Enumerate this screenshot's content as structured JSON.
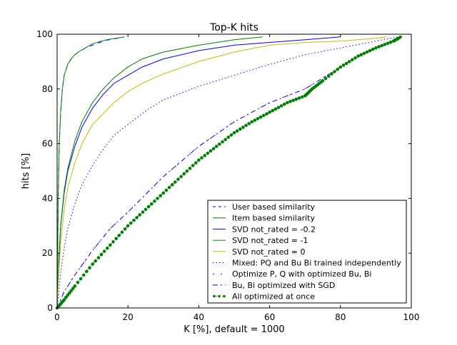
{
  "chart_data": {
    "type": "line",
    "title": "Top-K hits",
    "xlabel": "K [%], default = 1000",
    "ylabel": "hits [%]",
    "xlim": [
      0,
      100
    ],
    "ylim": [
      0,
      100
    ],
    "xticks": [
      "0",
      "20",
      "40",
      "60",
      "80",
      "100"
    ],
    "yticks": [
      "0",
      "20",
      "40",
      "60",
      "80",
      "100"
    ],
    "grid": false,
    "legend_position": "lower-right",
    "series": [
      {
        "name": "User based similarity",
        "color": "#0000ff",
        "style": "dashed",
        "x": [
          0,
          0.3,
          0.6,
          1,
          1.5,
          2,
          3,
          4,
          5,
          6,
          8,
          10,
          12,
          14,
          17,
          19
        ],
        "y": [
          0,
          40,
          60,
          72,
          80,
          85,
          89,
          91,
          92.5,
          93.5,
          95,
          96,
          97,
          97.8,
          98.5,
          99
        ]
      },
      {
        "name": "Item based similarity",
        "color": "#008000",
        "style": "solid",
        "x": [
          0,
          0.3,
          0.6,
          1,
          1.5,
          2,
          3,
          4,
          5,
          6,
          8,
          10,
          12,
          14,
          17,
          19
        ],
        "y": [
          0,
          40,
          60,
          72,
          80,
          85,
          89,
          91,
          92.5,
          93.5,
          95,
          96.5,
          97.3,
          98,
          98.6,
          99
        ]
      },
      {
        "name": "SVD not_rated = -0.2",
        "color": "#0000ff",
        "style": "solid",
        "x": [
          0,
          0.5,
          1,
          2,
          3,
          5,
          7,
          10,
          13,
          16,
          20,
          24,
          30,
          40,
          50,
          60,
          70,
          80
        ],
        "y": [
          0,
          18,
          30,
          42,
          50,
          59,
          66,
          73,
          78,
          82,
          85,
          88,
          91,
          94,
          96,
          97,
          98,
          99
        ]
      },
      {
        "name": "SVD not_rated = -1",
        "color": "#008000",
        "style": "solid",
        "x": [
          0,
          0.5,
          1,
          2,
          3,
          5,
          7,
          10,
          13,
          16,
          20,
          24,
          30,
          40,
          50,
          58
        ],
        "y": [
          0,
          18,
          30,
          43,
          51,
          61,
          68,
          75,
          80,
          84,
          88,
          91,
          93.5,
          96,
          98,
          99
        ]
      },
      {
        "name": "SVD not_rated = 0",
        "color": "#bfbf00",
        "style": "solid",
        "x": [
          0,
          0.5,
          1,
          2,
          3,
          5,
          7,
          10,
          13,
          16,
          20,
          24,
          30,
          40,
          50,
          60,
          70,
          80,
          90,
          93
        ],
        "y": [
          0,
          14,
          24,
          36,
          44,
          53,
          60,
          67,
          71,
          75,
          79,
          82,
          85.5,
          90,
          93.5,
          96,
          97,
          97.5,
          98.5,
          99
        ]
      },
      {
        "name": "Mixed: PQ and Bu Bi trained independently",
        "color": "#0000ff",
        "style": "dotted",
        "x": [
          0,
          1,
          2,
          3,
          5,
          7,
          10,
          13,
          16,
          20,
          25,
          30,
          40,
          50,
          60,
          70,
          80,
          90,
          96
        ],
        "y": [
          0,
          13,
          22,
          29,
          38,
          45,
          52,
          58,
          63,
          67,
          72,
          76,
          81,
          85,
          89,
          92.5,
          95,
          97.5,
          99
        ]
      },
      {
        "name": "Optimize P, Q with optimized Bu, Bi",
        "color": "#0000ff",
        "style": "dashdot-sparse",
        "x": [
          0,
          2,
          5,
          10,
          15,
          20,
          30,
          40,
          50,
          60,
          70,
          75,
          80,
          85,
          90,
          95,
          97
        ],
        "y": [
          0,
          6,
          12,
          21,
          29,
          35,
          48,
          59,
          68,
          75,
          80,
          84,
          88,
          92,
          95,
          97.5,
          99
        ]
      },
      {
        "name": "Bu, Bi optimized with SGD",
        "color": "#0000ff",
        "style": "dashdot",
        "x": [
          0,
          2,
          5,
          10,
          15,
          20,
          30,
          40,
          50,
          60,
          70,
          75,
          80,
          85,
          90,
          95,
          97
        ],
        "y": [
          0,
          6,
          12,
          21,
          29,
          35,
          48,
          59,
          68,
          75,
          80,
          84,
          88,
          92,
          95,
          97.5,
          99
        ]
      },
      {
        "name": "All optimized at once",
        "color": "#008000",
        "style": "dotted-marker",
        "x": [
          0,
          2,
          5,
          10,
          15,
          20,
          25,
          30,
          35,
          40,
          45,
          50,
          55,
          60,
          65,
          70,
          72,
          75,
          80,
          85,
          90,
          95,
          97
        ],
        "y": [
          0,
          3,
          8,
          16,
          23,
          30,
          36,
          42,
          48,
          54,
          59,
          64,
          68,
          71.5,
          75,
          77.5,
          80,
          83,
          88,
          92,
          95,
          97.5,
          99
        ]
      }
    ]
  }
}
